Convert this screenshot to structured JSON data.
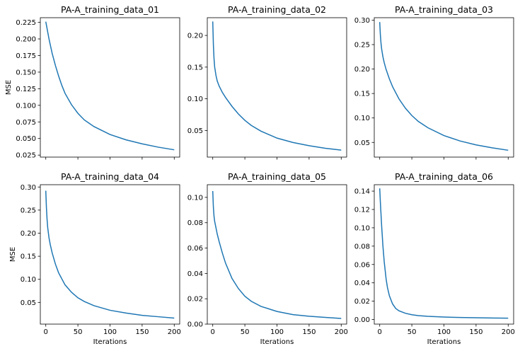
{
  "chart_data": [
    {
      "type": "line",
      "title": "PA-A_training_data_01",
      "ylabel": "MSE",
      "xlabel": "",
      "xlim": [
        -8.5,
        208.5
      ],
      "ylim": [
        0.022,
        0.232
      ],
      "xticks": [
        0,
        50,
        100,
        150,
        200
      ],
      "xtick_labels_visible": false,
      "yticks": [
        0.025,
        0.05,
        0.075,
        0.1,
        0.125,
        0.15,
        0.175,
        0.2,
        0.225
      ],
      "ytick_labels": [
        "0.025",
        "0.050",
        "0.075",
        "0.100",
        "0.125",
        "0.150",
        "0.175",
        "0.200",
        "0.225"
      ],
      "series": [
        {
          "color": "#1f77b4",
          "x": [
            0,
            5,
            10,
            15,
            20,
            25,
            30,
            40,
            50,
            60,
            75,
            100,
            125,
            150,
            175,
            200
          ],
          "y": [
            0.226,
            0.2,
            0.178,
            0.16,
            0.144,
            0.13,
            0.118,
            0.101,
            0.088,
            0.078,
            0.068,
            0.056,
            0.048,
            0.042,
            0.037,
            0.033
          ]
        }
      ]
    },
    {
      "type": "line",
      "title": "PA-A_training_data_02",
      "ylabel": "",
      "xlabel": "",
      "xlim": [
        -8.5,
        208.5
      ],
      "ylim": [
        0.008,
        0.228
      ],
      "xticks": [
        0,
        50,
        100,
        150,
        200
      ],
      "xtick_labels_visible": false,
      "yticks": [
        0.05,
        0.1,
        0.15,
        0.2
      ],
      "ytick_labels": [
        "0.05",
        "0.10",
        "0.15",
        "0.20"
      ],
      "series": [
        {
          "color": "#1f77b4",
          "x": [
            0,
            1,
            2,
            3,
            5,
            7,
            10,
            15,
            20,
            30,
            40,
            50,
            60,
            75,
            100,
            125,
            150,
            175,
            200
          ],
          "y": [
            0.222,
            0.185,
            0.163,
            0.15,
            0.137,
            0.128,
            0.12,
            0.11,
            0.102,
            0.088,
            0.076,
            0.066,
            0.058,
            0.049,
            0.038,
            0.031,
            0.026,
            0.022,
            0.019
          ]
        }
      ]
    },
    {
      "type": "line",
      "title": "PA-A_training_data_03",
      "ylabel": "",
      "xlabel": "",
      "xlim": [
        -8.5,
        208.5
      ],
      "ylim": [
        0.02,
        0.305
      ],
      "xticks": [
        0,
        50,
        100,
        150,
        200
      ],
      "xtick_labels_visible": false,
      "yticks": [
        0.05,
        0.1,
        0.15,
        0.2,
        0.25,
        0.3
      ],
      "ytick_labels": [
        "0.05",
        "0.10",
        "0.15",
        "0.20",
        "0.25",
        "0.30"
      ],
      "series": [
        {
          "color": "#1f77b4",
          "x": [
            0,
            1,
            2,
            3,
            5,
            7,
            10,
            15,
            20,
            30,
            40,
            50,
            60,
            75,
            100,
            125,
            150,
            175,
            200
          ],
          "y": [
            0.296,
            0.27,
            0.253,
            0.241,
            0.225,
            0.213,
            0.199,
            0.18,
            0.164,
            0.139,
            0.12,
            0.105,
            0.093,
            0.08,
            0.064,
            0.053,
            0.045,
            0.039,
            0.034
          ]
        }
      ]
    },
    {
      "type": "line",
      "title": "PA-A_training_data_04",
      "ylabel": "MSE",
      "xlabel": "Iterations",
      "xlim": [
        -8.5,
        208.5
      ],
      "ylim": [
        0.003,
        0.305
      ],
      "xticks": [
        0,
        50,
        100,
        150,
        200
      ],
      "xtick_labels_visible": true,
      "yticks": [
        0.05,
        0.1,
        0.15,
        0.2,
        0.25,
        0.3
      ],
      "ytick_labels": [
        "0.05",
        "0.10",
        "0.15",
        "0.20",
        "0.25",
        "0.30"
      ],
      "series": [
        {
          "color": "#1f77b4",
          "x": [
            0,
            1,
            2,
            3,
            5,
            7,
            10,
            15,
            20,
            30,
            40,
            50,
            60,
            75,
            100,
            125,
            150,
            175,
            200
          ],
          "y": [
            0.292,
            0.255,
            0.23,
            0.212,
            0.19,
            0.175,
            0.157,
            0.133,
            0.114,
            0.088,
            0.072,
            0.06,
            0.052,
            0.043,
            0.033,
            0.027,
            0.022,
            0.019,
            0.016
          ]
        }
      ]
    },
    {
      "type": "line",
      "title": "PA-A_training_data_05",
      "ylabel": "",
      "xlabel": "Iterations",
      "xlim": [
        -8.5,
        208.5
      ],
      "ylim": [
        0.0,
        0.11
      ],
      "xticks": [
        0,
        50,
        100,
        150,
        200
      ],
      "xtick_labels_visible": true,
      "yticks": [
        0.0,
        0.02,
        0.04,
        0.06,
        0.08,
        0.1
      ],
      "ytick_labels": [
        "0.00",
        "0.02",
        "0.04",
        "0.06",
        "0.08",
        "0.10"
      ],
      "series": [
        {
          "color": "#1f77b4",
          "x": [
            0,
            1,
            2,
            3,
            5,
            7,
            10,
            15,
            20,
            30,
            40,
            50,
            60,
            75,
            100,
            125,
            150,
            175,
            200
          ],
          "y": [
            0.105,
            0.092,
            0.085,
            0.081,
            0.076,
            0.071,
            0.065,
            0.056,
            0.048,
            0.036,
            0.028,
            0.022,
            0.018,
            0.014,
            0.01,
            0.0075,
            0.0062,
            0.0053,
            0.0045
          ]
        }
      ]
    },
    {
      "type": "line",
      "title": "PA-A_training_data_06",
      "ylabel": "",
      "xlabel": "Iterations",
      "xlim": [
        -8.5,
        208.5
      ],
      "ylim": [
        -0.005,
        0.147
      ],
      "xticks": [
        0,
        50,
        100,
        150,
        200
      ],
      "xtick_labels_visible": true,
      "yticks": [
        0.0,
        0.02,
        0.04,
        0.06,
        0.08,
        0.1,
        0.12,
        0.14
      ],
      "ytick_labels": [
        "0.00",
        "0.02",
        "0.04",
        "0.06",
        "0.08",
        "0.10",
        "0.12",
        "0.14"
      ],
      "series": [
        {
          "color": "#1f77b4",
          "x": [
            0,
            1,
            2,
            3,
            5,
            7,
            10,
            12,
            15,
            20,
            25,
            30,
            40,
            50,
            60,
            75,
            100,
            125,
            150,
            175,
            200
          ],
          "y": [
            0.143,
            0.128,
            0.115,
            0.102,
            0.08,
            0.063,
            0.044,
            0.035,
            0.026,
            0.017,
            0.012,
            0.0095,
            0.0068,
            0.0052,
            0.0043,
            0.0035,
            0.0027,
            0.0022,
            0.0019,
            0.0017,
            0.0015
          ]
        }
      ]
    }
  ]
}
